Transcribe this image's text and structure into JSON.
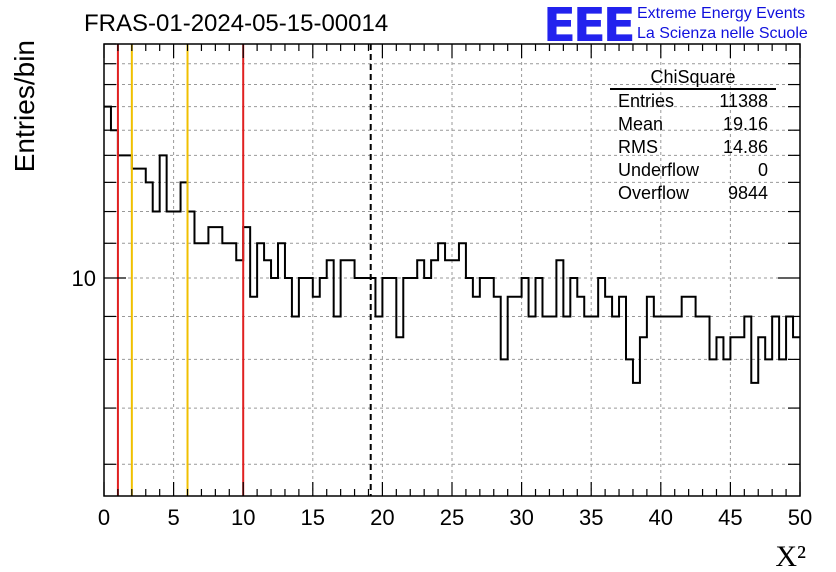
{
  "header": {
    "run_title": "FRAS-01-2024-05-15-00014",
    "logo_text": "EEE",
    "logo_line1": "Extreme Energy Events",
    "logo_line2": "La Scienza nelle Scuole"
  },
  "stats_box": {
    "title": "ChiSquare",
    "rows": [
      {
        "label": "Entries",
        "value": "11388"
      },
      {
        "label": "Mean",
        "value": "19.16"
      },
      {
        "label": "RMS",
        "value": "14.86"
      },
      {
        "label": "Underflow",
        "value": "0"
      },
      {
        "label": "Overflow",
        "value": "9844"
      }
    ]
  },
  "chart_data": {
    "type": "histogram",
    "xlabel": "X²",
    "ylabel": "Entries/bin",
    "xlim": [
      0,
      50
    ],
    "ylim": [
      5.5,
      19
    ],
    "yscale": "log",
    "grid": true,
    "x_ticks": [
      "0",
      "5",
      "10",
      "15",
      "20",
      "25",
      "30",
      "35",
      "40",
      "45",
      "50"
    ],
    "y_tick_labels": [
      {
        "value": 10,
        "label": "10"
      }
    ],
    "bin_width": 0.5,
    "bin_values": [
      16,
      15,
      14,
      14,
      13.5,
      13.5,
      13,
      12,
      14,
      12,
      12,
      13,
      12,
      11,
      11,
      11.5,
      11.5,
      11,
      11,
      10.5,
      11.5,
      9.5,
      11,
      10.5,
      10,
      11,
      10,
      9,
      10,
      10,
      9.5,
      10,
      10.5,
      9,
      10.5,
      10.5,
      10,
      10,
      10,
      9,
      10,
      10,
      8.5,
      10,
      10,
      10.5,
      10,
      10.5,
      11,
      10.5,
      10.5,
      11,
      10,
      9.5,
      10,
      10,
      9.5,
      8,
      9.5,
      9.5,
      10,
      9,
      10,
      9,
      9,
      10.5,
      9,
      10,
      9.5,
      9,
      9,
      10,
      9.5,
      9,
      9.5,
      8,
      7.5,
      8.5,
      9.5,
      9,
      9,
      9,
      9,
      9.5,
      9.5,
      9,
      9,
      8,
      8.5,
      8,
      8.5,
      8.5,
      9,
      7.5,
      8.5,
      8,
      9,
      8,
      9,
      8.5
    ],
    "vertical_lines": [
      {
        "x": 1,
        "color": "#e02020",
        "style": "solid"
      },
      {
        "x": 2,
        "color": "#f0c000",
        "style": "solid"
      },
      {
        "x": 6,
        "color": "#f0c000",
        "style": "solid"
      },
      {
        "x": 10,
        "color": "#e02020",
        "style": "solid"
      },
      {
        "x": 19.16,
        "color": "#000000",
        "style": "dashed"
      }
    ]
  }
}
